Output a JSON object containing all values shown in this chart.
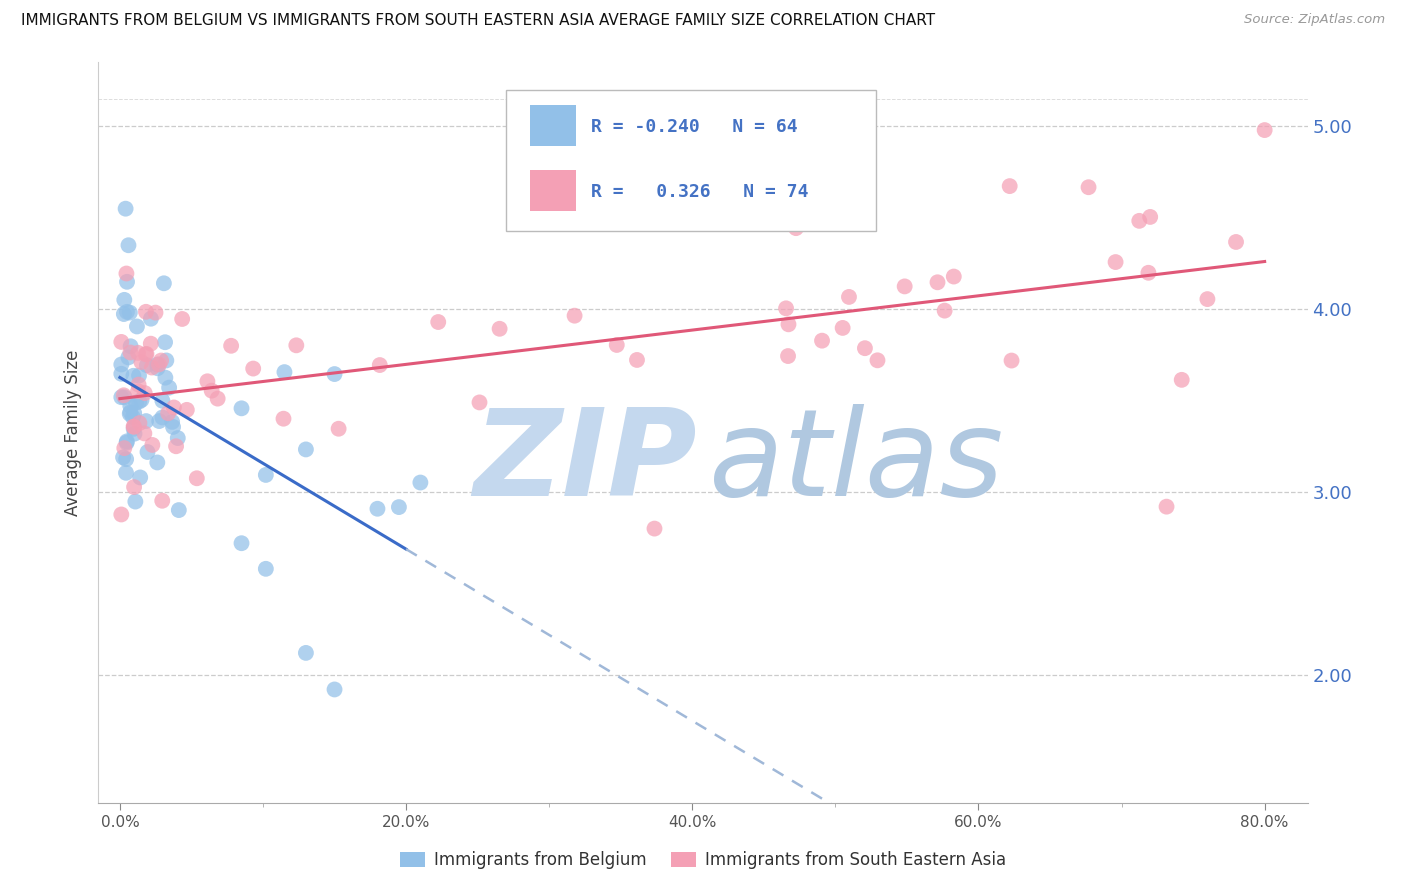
{
  "title": "IMMIGRANTS FROM BELGIUM VS IMMIGRANTS FROM SOUTH EASTERN ASIA AVERAGE FAMILY SIZE CORRELATION CHART",
  "source": "Source: ZipAtlas.com",
  "ylabel": "Average Family Size",
  "color_belgium": "#92C0E8",
  "color_sea": "#F4A0B5",
  "color_trend_belgium": "#3A6BC8",
  "color_trend_sea": "#E05878",
  "color_dashed": "#A0B8D8",
  "watermark_zip_color": "#C4D8EE",
  "watermark_atlas_color": "#B0C8E0",
  "background_color": "#FFFFFF",
  "legend_r_belgium": "-0.240",
  "legend_n_belgium": "64",
  "legend_r_sea": "0.326",
  "legend_n_sea": "74",
  "ylim_bottom": 1.3,
  "ylim_top": 5.35,
  "xlim_left": -1.5,
  "xlim_right": 83.0,
  "bel_intercept": 3.55,
  "bel_slope": -0.028,
  "sea_intercept": 3.45,
  "sea_slope": 0.012
}
